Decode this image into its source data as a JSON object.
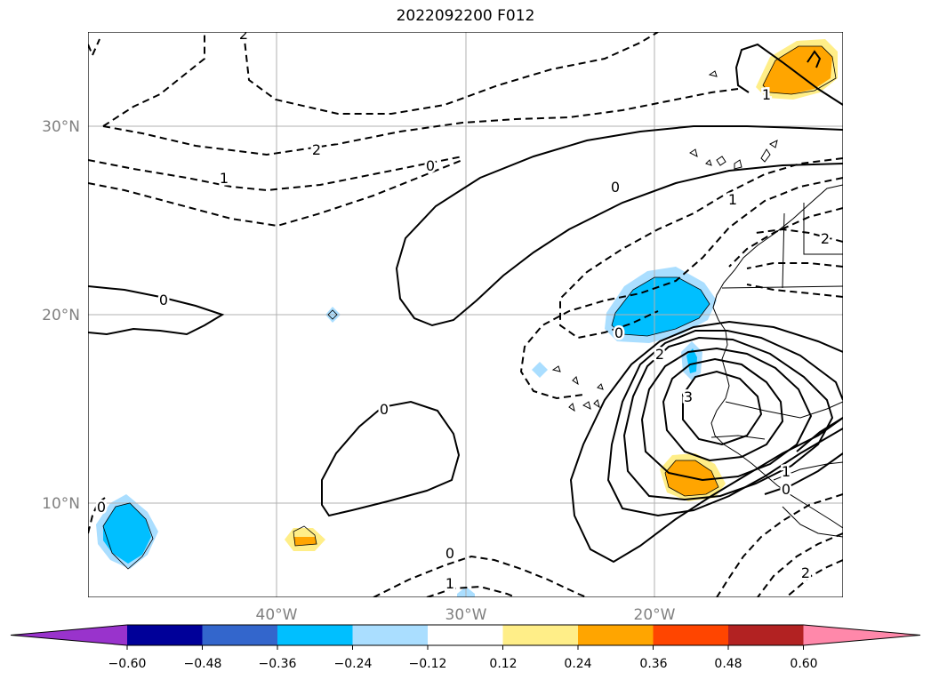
{
  "map": {
    "title": "2022092200 F012",
    "lat_labels": [
      {
        "lat": 30,
        "text": "30°N"
      },
      {
        "lat": 20,
        "text": "20°N"
      },
      {
        "lat": 10,
        "text": "10°N"
      }
    ],
    "lon_labels": [
      {
        "lon": -40,
        "text": "40°W"
      },
      {
        "lon": -30,
        "text": "30°W"
      },
      {
        "lon": -20,
        "text": "20°W"
      }
    ],
    "extent": {
      "lon_min": -50,
      "lon_max": -10,
      "lat_min": 5,
      "lat_max": 35
    },
    "gridlines": true,
    "contour_labels": [
      "0",
      "0",
      "0",
      "0",
      "0",
      "0",
      "0",
      "0",
      "1",
      "1",
      "1",
      "1",
      "1",
      "2",
      "2",
      "2",
      "2",
      "2",
      "3"
    ]
  },
  "colorbar": {
    "ticks": [
      "−0.60",
      "−0.48",
      "−0.36",
      "−0.24",
      "−0.12",
      "0.12",
      "0.24",
      "0.36",
      "0.48",
      "0.60"
    ],
    "colors": [
      "#9933cc",
      "#000099",
      "#3366cc",
      "#00bfff",
      "#aadeff",
      "#ffffff",
      "#ffee88",
      "#ffa500",
      "#ff4500",
      "#b22222",
      "#ff88aa"
    ],
    "extend": "both"
  }
}
